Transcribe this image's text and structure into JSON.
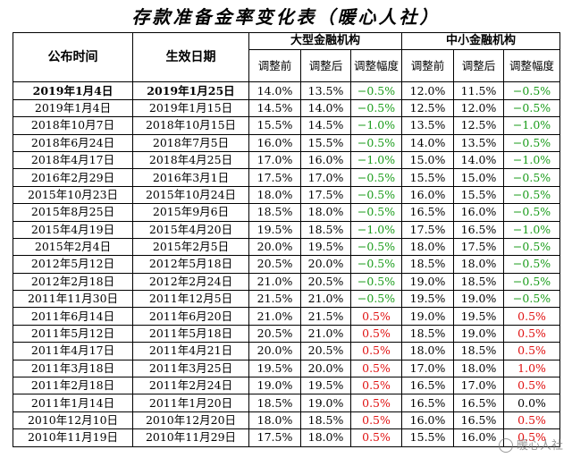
{
  "title": "存款准备金率变化表（暖心人社）",
  "headers": {
    "announce": "公布时间",
    "effective": "生效日期",
    "large": "大型金融机构",
    "small": "中小金融机构",
    "before": "调整前",
    "after": "调整后",
    "change": "调整幅度"
  },
  "rows": [
    {
      "announce": "2019年1月4日",
      "effective": "2019年1月25日",
      "l_before": "14.0%",
      "l_after": "13.5%",
      "l_chg": "−0.5%",
      "s_before": "12.0%",
      "s_after": "11.5%",
      "s_chg": "−0.5%"
    },
    {
      "announce": "2019年1月4日",
      "effective": "2019年1月15日",
      "l_before": "14.5%",
      "l_after": "14.0%",
      "l_chg": "−0.5%",
      "s_before": "12.5%",
      "s_after": "12.0%",
      "s_chg": "−0.5%"
    },
    {
      "announce": "2018年10月7日",
      "effective": "2018年10月15日",
      "l_before": "15.5%",
      "l_after": "14.5%",
      "l_chg": "−1.0%",
      "s_before": "13.5%",
      "s_after": "12.5%",
      "s_chg": "−1.0%"
    },
    {
      "announce": "2018年6月24日",
      "effective": "2018年7月5日",
      "l_before": "16.0%",
      "l_after": "15.5%",
      "l_chg": "−0.5%",
      "s_before": "14.0%",
      "s_after": "13.5%",
      "s_chg": "−0.5%"
    },
    {
      "announce": "2018年4月17日",
      "effective": "2018年4月25日",
      "l_before": "17.0%",
      "l_after": "16.0%",
      "l_chg": "−1.0%",
      "s_before": "15.0%",
      "s_after": "14.0%",
      "s_chg": "−1.0%"
    },
    {
      "announce": "2016年2月29日",
      "effective": "2016年3月1日",
      "l_before": "17.5%",
      "l_after": "17.0%",
      "l_chg": "−0.5%",
      "s_before": "15.5%",
      "s_after": "15.0%",
      "s_chg": "−0.5%"
    },
    {
      "announce": "2015年10月23日",
      "effective": "2015年10月24日",
      "l_before": "18.0%",
      "l_after": "17.5%",
      "l_chg": "−0.5%",
      "s_before": "16.0%",
      "s_after": "15.5%",
      "s_chg": "−0.5%"
    },
    {
      "announce": "2015年8月25日",
      "effective": "2015年9月6日",
      "l_before": "18.5%",
      "l_after": "18.0%",
      "l_chg": "−0.5%",
      "s_before": "16.5%",
      "s_after": "16.0%",
      "s_chg": "−0.5%"
    },
    {
      "announce": "2015年4月19日",
      "effective": "2015年4月20日",
      "l_before": "19.5%",
      "l_after": "18.5%",
      "l_chg": "−1.0%",
      "s_before": "17.5%",
      "s_after": "16.5%",
      "s_chg": "−1.0%"
    },
    {
      "announce": "2015年2月4日",
      "effective": "2015年2月5日",
      "l_before": "20.0%",
      "l_after": "19.5%",
      "l_chg": "−0.5%",
      "s_before": "18.0%",
      "s_after": "17.5%",
      "s_chg": "−0.5%"
    },
    {
      "announce": "2012年5月12日",
      "effective": "2012年5月18日",
      "l_before": "20.5%",
      "l_after": "20.0%",
      "l_chg": "−0.5%",
      "s_before": "18.5%",
      "s_after": "18.0%",
      "s_chg": "−0.5%"
    },
    {
      "announce": "2012年2月18日",
      "effective": "2012年2月24日",
      "l_before": "21.0%",
      "l_after": "20.5%",
      "l_chg": "−0.5%",
      "s_before": "19.0%",
      "s_after": "18.5%",
      "s_chg": "−0.5%"
    },
    {
      "announce": "2011年11月30日",
      "effective": "2011年12月5日",
      "l_before": "21.5%",
      "l_after": "21.0%",
      "l_chg": "−0.5%",
      "s_before": "19.5%",
      "s_after": "19.0%",
      "s_chg": "−0.5%"
    },
    {
      "announce": "2011年6月14日",
      "effective": "2011年6月20日",
      "l_before": "21.0%",
      "l_after": "21.5%",
      "l_chg": "0.5%",
      "s_before": "19.0%",
      "s_after": "19.5%",
      "s_chg": "0.5%"
    },
    {
      "announce": "2011年5月12日",
      "effective": "2011年5月18日",
      "l_before": "20.5%",
      "l_after": "21.0%",
      "l_chg": "0.5%",
      "s_before": "18.5%",
      "s_after": "19.0%",
      "s_chg": "0.5%"
    },
    {
      "announce": "2011年4月17日",
      "effective": "2011年4月21日",
      "l_before": "20.0%",
      "l_after": "20.5%",
      "l_chg": "0.5%",
      "s_before": "18.0%",
      "s_after": "18.5%",
      "s_chg": "0.5%"
    },
    {
      "announce": "2011年3月18日",
      "effective": "2011年3月25日",
      "l_before": "19.5%",
      "l_after": "20.0%",
      "l_chg": "0.5%",
      "s_before": "17.0%",
      "s_after": "18.0%",
      "s_chg": "1.0%"
    },
    {
      "announce": "2011年2月18日",
      "effective": "2011年2月24日",
      "l_before": "19.0%",
      "l_after": "19.5%",
      "l_chg": "0.5%",
      "s_before": "16.5%",
      "s_after": "17.0%",
      "s_chg": "0.5%"
    },
    {
      "announce": "2011年1月14日",
      "effective": "2011年1月20日",
      "l_before": "18.5%",
      "l_after": "19.0%",
      "l_chg": "0.5%",
      "s_before": "16.5%",
      "s_after": "16.5%",
      "s_chg": "0.0%"
    },
    {
      "announce": "2010年12月10日",
      "effective": "2010年12月20日",
      "l_before": "18.0%",
      "l_after": "18.5%",
      "l_chg": "0.5%",
      "s_before": "16.0%",
      "s_after": "16.5%",
      "s_chg": "0.5%"
    },
    {
      "announce": "2010年11月19日",
      "effective": "2010年11月29日",
      "l_before": "17.5%",
      "l_after": "18.0%",
      "l_chg": "0.5%",
      "s_before": "15.5%",
      "s_after": "16.0%",
      "s_chg": "0.5%"
    }
  ],
  "colors": {
    "decrease": "#1a9c1a",
    "increase": "#e01010",
    "unchanged": "#000000"
  },
  "watermark": "暖心人社"
}
